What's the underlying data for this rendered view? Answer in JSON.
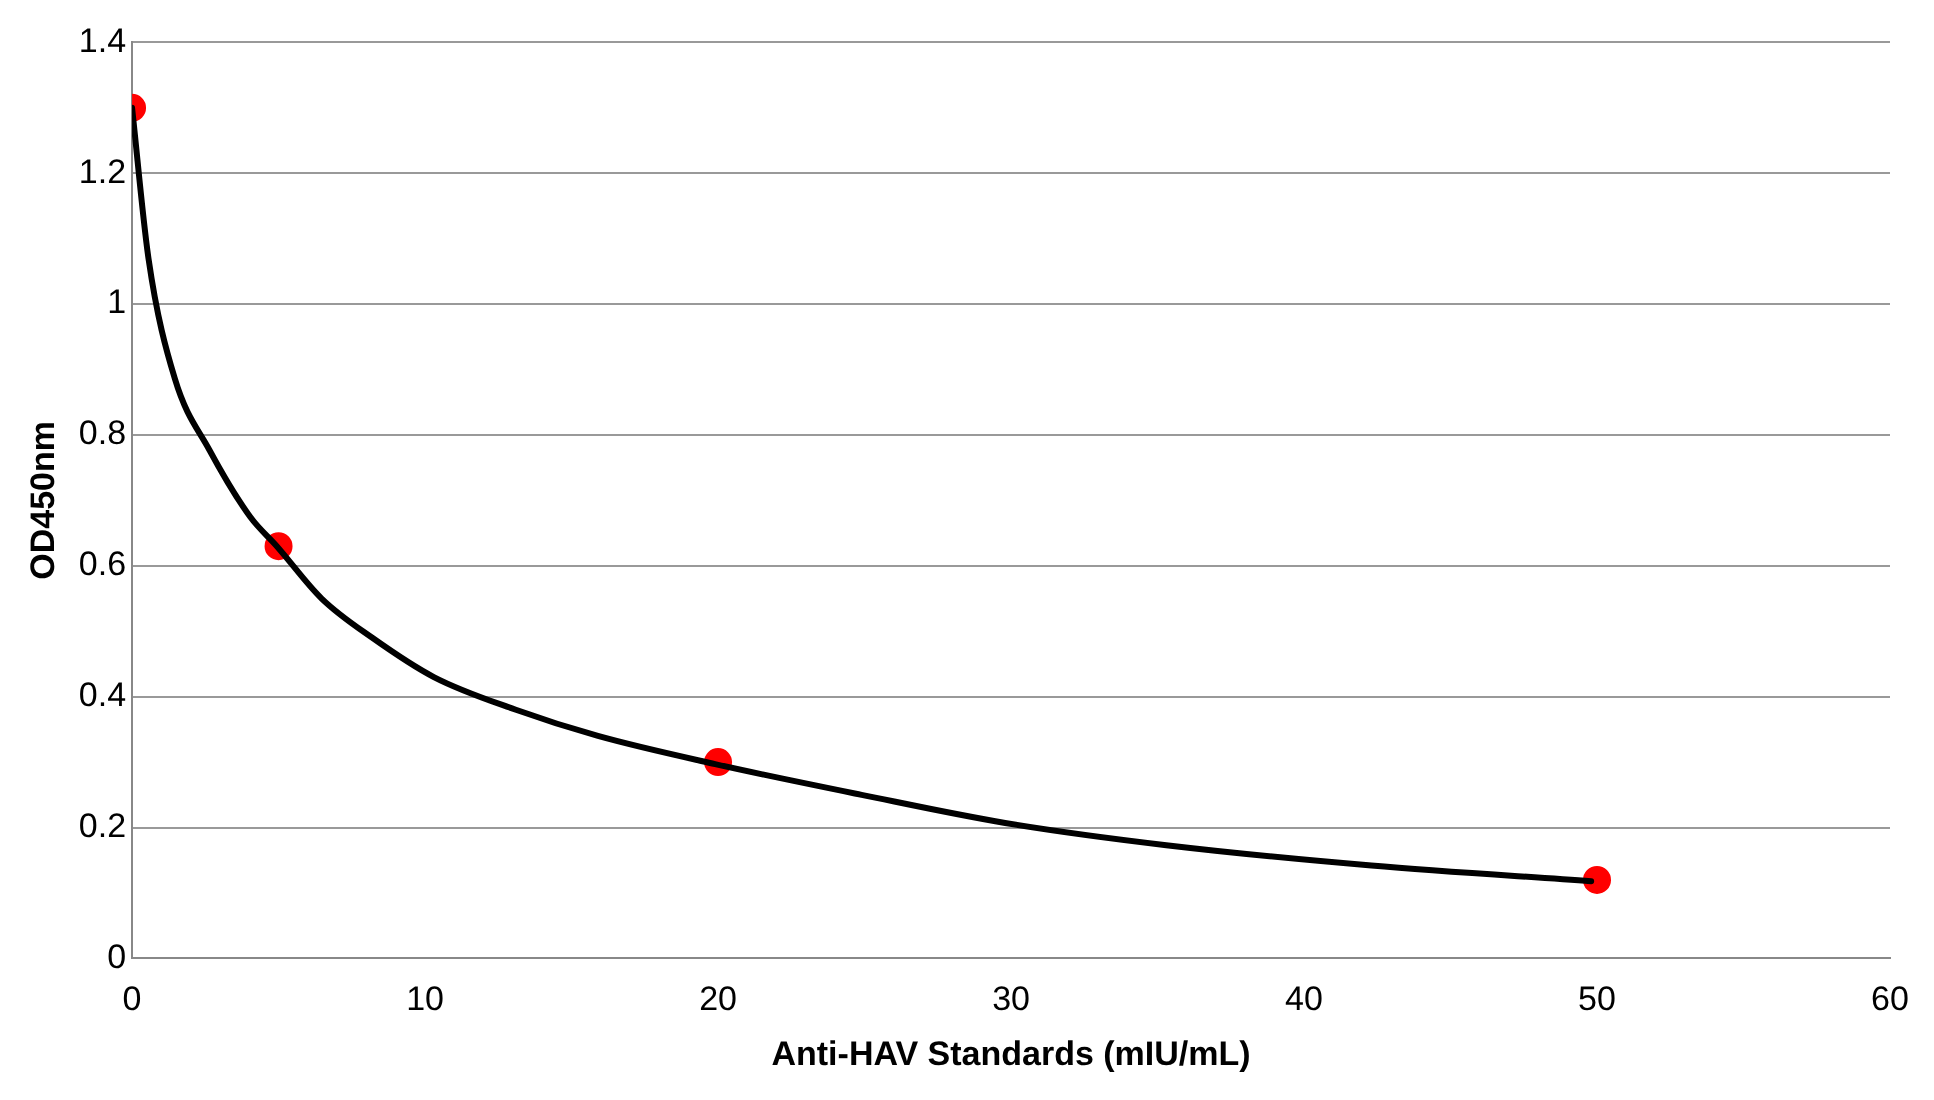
{
  "chart_data": {
    "type": "scatter",
    "xlabel": "Anti-HAV Standards (mIU/mL)",
    "ylabel": "OD450nm",
    "xlim": [
      0,
      60
    ],
    "xticks": [
      0,
      10,
      20,
      30,
      40,
      50,
      60
    ],
    "ylim": [
      0,
      1.4
    ],
    "yticks": [
      0,
      0.2,
      0.4,
      0.6,
      0.8,
      1,
      1.2,
      1.4
    ],
    "grid": "y",
    "legend": false,
    "series": [
      {
        "type": "line",
        "color": "#000000",
        "marker": "none",
        "line_style": "solid",
        "x": [
          0,
          0.56,
          1.46,
          2.64,
          4.03,
          4.94,
          6.47,
          8.2,
          10.3,
          13.1,
          15.9,
          19.9,
          24.9,
          29.8,
          35.3,
          42.3,
          49.8
        ],
        "values": [
          1.3,
          1.07,
          0.886,
          0.777,
          0.675,
          0.63,
          0.55,
          0.49,
          0.43,
          0.38,
          0.34,
          0.297,
          0.25,
          0.207,
          0.173,
          0.142,
          0.118
        ]
      },
      {
        "type": "scatter",
        "color": "#ff0000",
        "marker": "circle",
        "x": [
          0,
          5,
          20,
          50
        ],
        "values": [
          1.3,
          0.63,
          0.3,
          0.12
        ]
      }
    ]
  }
}
